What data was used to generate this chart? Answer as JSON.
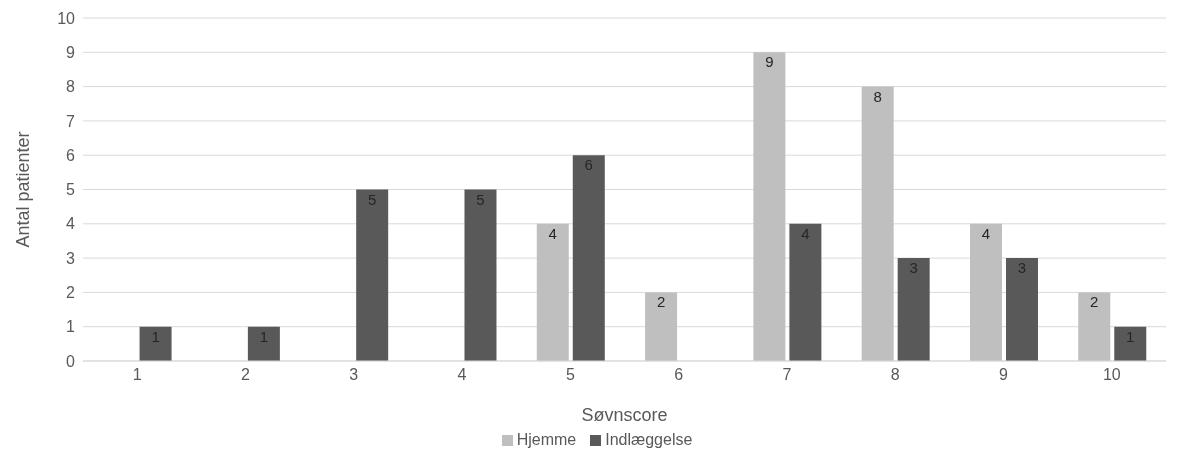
{
  "chart_data": {
    "type": "bar",
    "xlabel": "Søvnscore",
    "ylabel": "Antal patienter",
    "categories": [
      "1",
      "2",
      "3",
      "4",
      "5",
      "6",
      "7",
      "8",
      "9",
      "10"
    ],
    "series": [
      {
        "name": "Hjemme",
        "color": "#bfbfbf",
        "values": [
          0,
          0,
          0,
          0,
          4,
          2,
          9,
          8,
          4,
          2
        ],
        "value_labels": [
          null,
          null,
          null,
          null,
          "4",
          "2",
          "9",
          "8",
          "4",
          "2"
        ]
      },
      {
        "name": "Indlæggelse",
        "color": "#595959",
        "values": [
          1,
          1,
          5,
          5,
          6,
          0,
          4,
          3,
          3,
          1
        ],
        "value_labels": [
          "1",
          "1",
          "5",
          "5",
          "6",
          null,
          "4",
          "3",
          "3",
          "1"
        ]
      }
    ],
    "ylim": [
      0,
      10
    ],
    "yticks": [
      0,
      1,
      2,
      3,
      4,
      5,
      6,
      7,
      8,
      9,
      10
    ],
    "grid": "y",
    "legend": "bottom"
  }
}
